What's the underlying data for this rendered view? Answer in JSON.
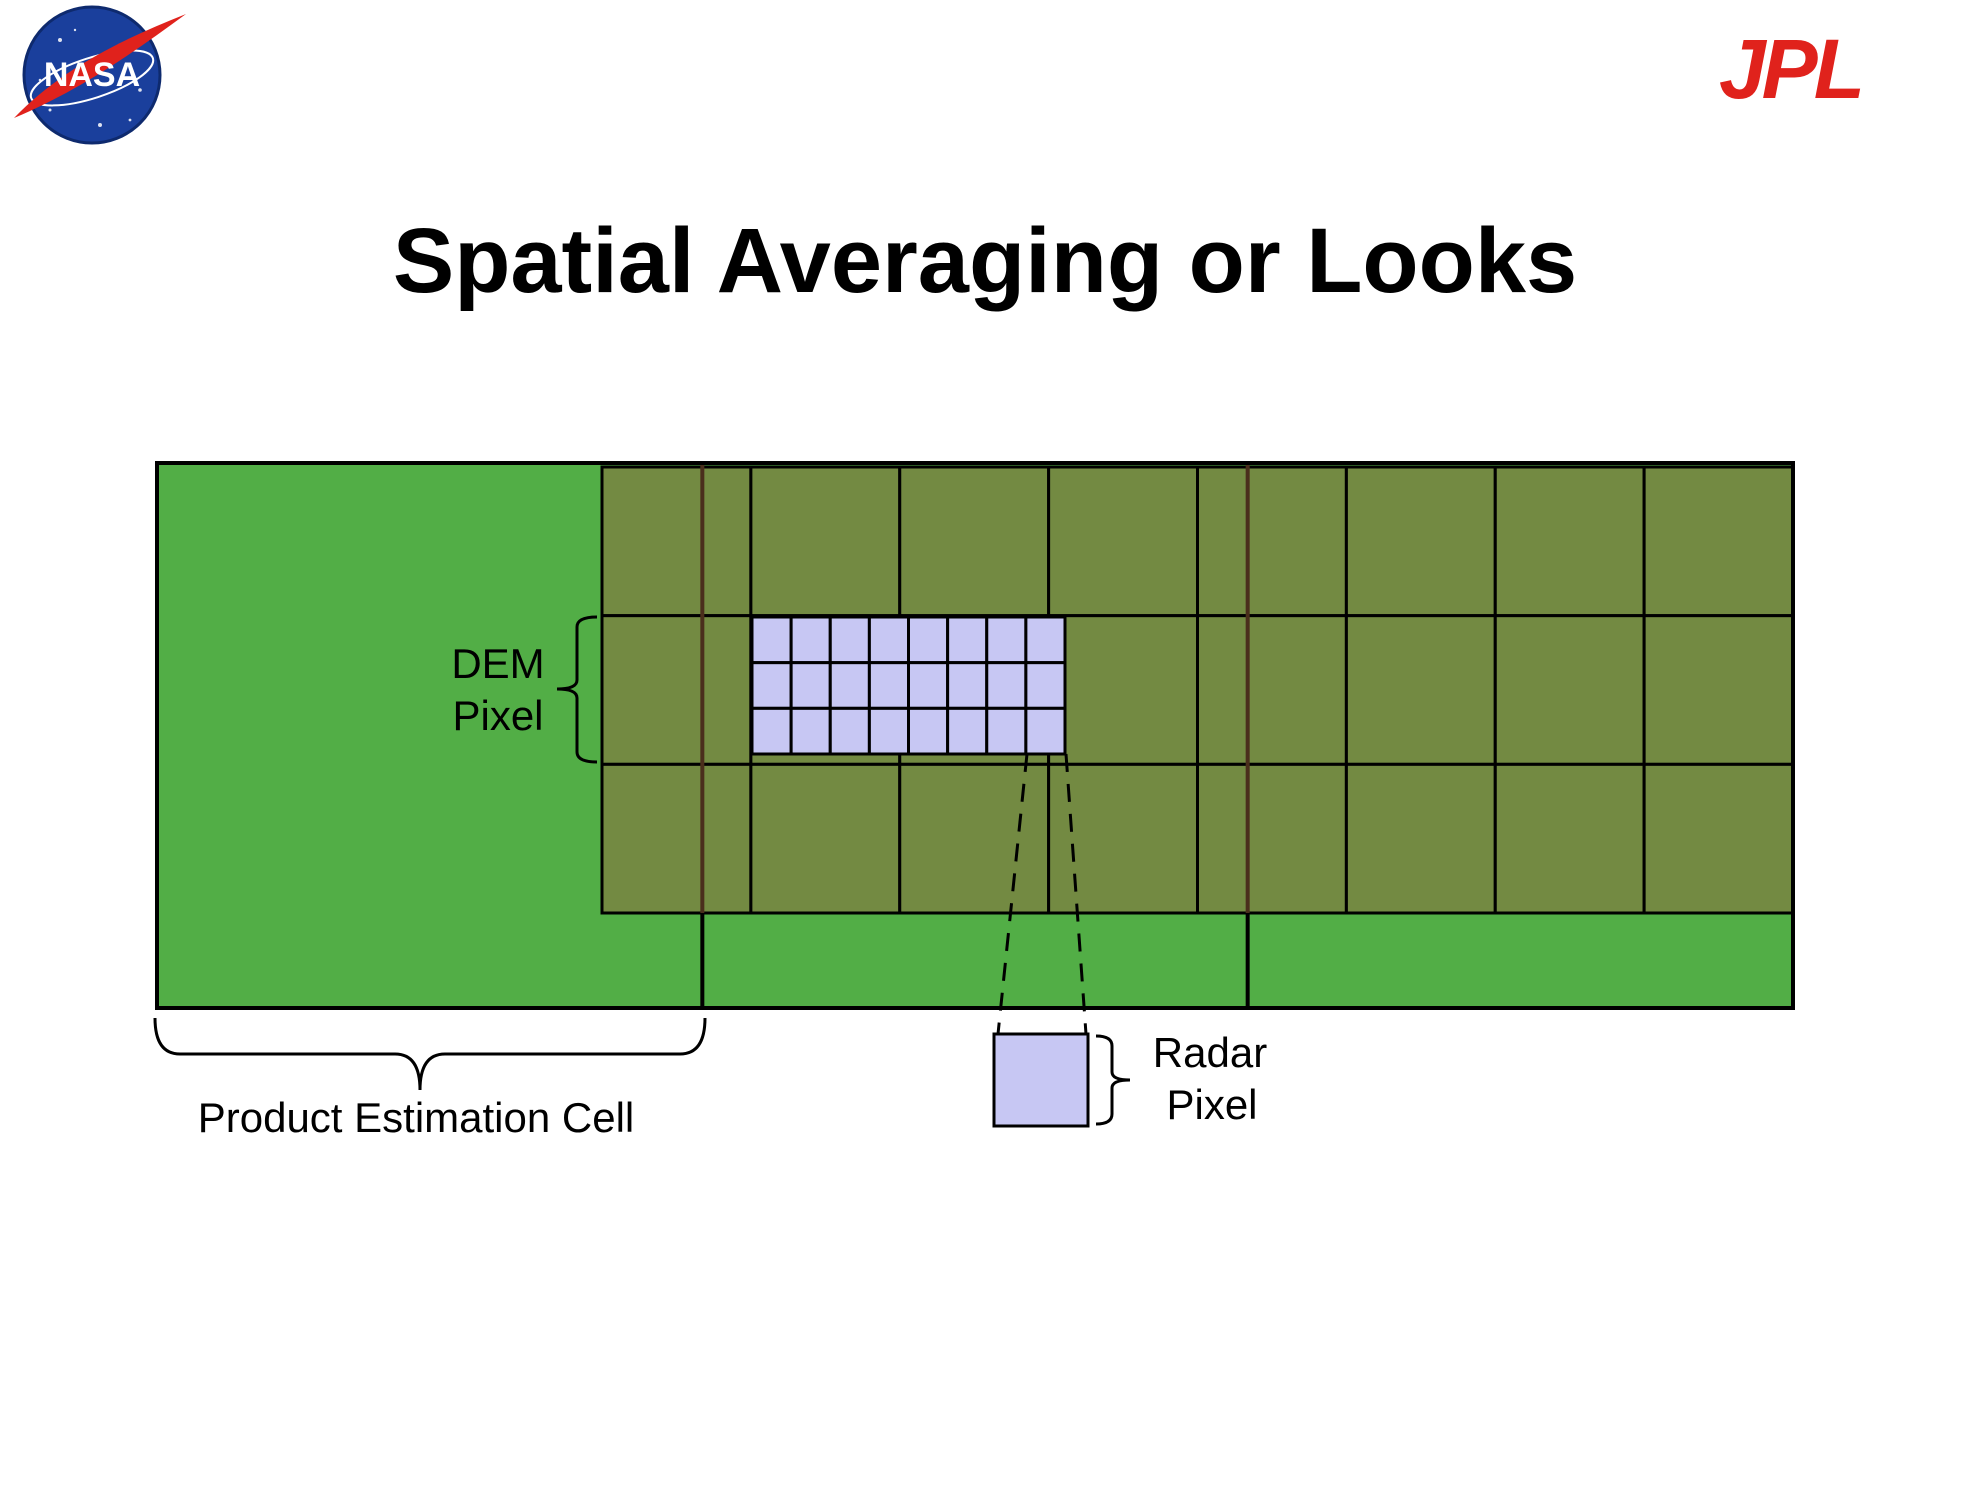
{
  "slide": {
    "title": "Spatial Averaging or Looks",
    "logos": {
      "left": {
        "text": "NASA",
        "icon": "nasa-meatball-logo",
        "colors": [
          "#1a3f9c",
          "#e0221c",
          "#ffffff"
        ]
      },
      "right": {
        "text": "JPL",
        "icon": "jpl-logo",
        "color": "#e0221c"
      }
    }
  },
  "diagram": {
    "labels": {
      "dem_line1": "DEM",
      "dem_line2": "Pixel",
      "radar_line1": "Radar",
      "radar_line2": "Pixel",
      "product_cell": "Product Estimation Cell"
    },
    "grid": {
      "dem_columns": 8,
      "dem_rows": 3,
      "radar_columns": 8,
      "radar_rows": 3,
      "product_cells": 3
    },
    "colors": {
      "product_cell_fill": "#52ae46",
      "dem_area_fill": "#738a42",
      "radar_pixel_fill": "#c7c7f3",
      "outline": "#000000",
      "cell_divider": "#4a2e1c"
    }
  }
}
